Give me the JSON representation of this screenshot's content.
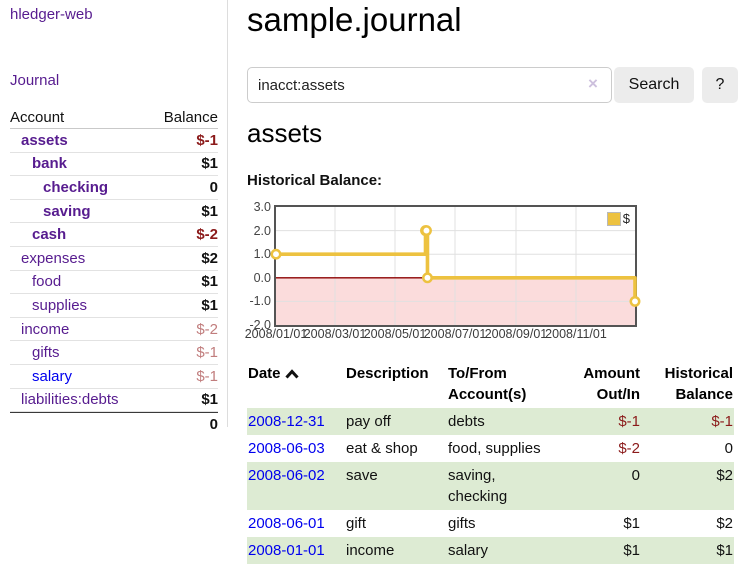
{
  "app": {
    "brand": "hledger-web",
    "nav": {
      "journal": "Journal"
    }
  },
  "sidebar": {
    "header": {
      "account": "Account",
      "balance": "Balance"
    },
    "accounts": [
      {
        "name": "assets",
        "indent": 1,
        "balance": "$-1",
        "bold": true,
        "neg": "strong"
      },
      {
        "name": "bank",
        "indent": 2,
        "balance": "$1",
        "bold": true
      },
      {
        "name": "checking",
        "indent": 3,
        "balance": "0",
        "bold": true
      },
      {
        "name": "saving",
        "indent": 3,
        "balance": "$1",
        "bold": true
      },
      {
        "name": "cash",
        "indent": 2,
        "balance": "$-2",
        "bold": true,
        "neg": "strong"
      },
      {
        "name": "expenses",
        "indent": 1,
        "balance": "$2"
      },
      {
        "name": "food",
        "indent": 2,
        "balance": "$1"
      },
      {
        "name": "supplies",
        "indent": 2,
        "balance": "$1"
      },
      {
        "name": "income",
        "indent": 1,
        "balance": "$-2",
        "neg": "soft"
      },
      {
        "name": "gifts",
        "indent": 2,
        "balance": "$-1",
        "neg": "soft"
      },
      {
        "name": "salary",
        "indent": 2,
        "balance": "$-1",
        "neg": "soft",
        "link": "blue"
      },
      {
        "name": "liabilities:debts",
        "indent": 1,
        "balance": "$1"
      }
    ],
    "total": "0"
  },
  "header": {
    "title": "sample.journal"
  },
  "search": {
    "value": "inacct:assets",
    "clear_icon": "×",
    "button_label": "Search",
    "help_label": "?"
  },
  "account_page": {
    "title": "assets",
    "chart_label": "Historical Balance:"
  },
  "chart_data": {
    "type": "line",
    "title": "Historical Balance",
    "style": "step",
    "series": [
      {
        "name": "$",
        "color": "#edc240",
        "points": [
          [
            "2008-01-01",
            1
          ],
          [
            "2008-06-01",
            2
          ],
          [
            "2008-06-02",
            2
          ],
          [
            "2008-06-03",
            0
          ],
          [
            "2008-12-31",
            -1
          ]
        ]
      }
    ],
    "x_ticks": [
      "2008/01/01",
      "2008/03/01",
      "2008/05/01",
      "2008/07/01",
      "2008/09/01",
      "2008/11/01"
    ],
    "y_ticks": [
      "3.0",
      "2.0",
      "1.0",
      "0.0",
      "-1.0",
      "-2.0"
    ],
    "y_tick_values": [
      3,
      2,
      1,
      0,
      -1,
      -2
    ],
    "ylim": [
      -2,
      3
    ],
    "xlim": [
      "2008-01-01",
      "2008-12-31"
    ],
    "grid": true,
    "legend": {
      "label": "$",
      "position": "top-right"
    },
    "negative_region_color": "#fbdcdc",
    "zero_line_color": "#8b0000"
  },
  "register": {
    "columns": [
      {
        "l1": "Date"
      },
      {
        "l1": "Description"
      },
      {
        "l1": "To/From",
        "l2": "Account(s)"
      },
      {
        "l1": "Amount",
        "l2": "Out/In"
      },
      {
        "l1": "Historical",
        "l2": "Balance"
      }
    ],
    "rows": [
      {
        "date": "2008-12-31",
        "description": "pay off",
        "accounts": "debts",
        "amount": "$-1",
        "balance": "$-1"
      },
      {
        "date": "2008-06-03",
        "description": "eat & shop",
        "accounts": "food, supplies",
        "amount": "$-2",
        "balance": "0"
      },
      {
        "date": "2008-06-02",
        "description": "save",
        "accounts": "saving, checking",
        "amount": "0",
        "balance": "$2"
      },
      {
        "date": "2008-06-01",
        "description": "gift",
        "accounts": "gifts",
        "amount": "$1",
        "balance": "$2"
      },
      {
        "date": "2008-01-01",
        "description": "income",
        "accounts": "salary",
        "amount": "$1",
        "balance": "$1"
      }
    ]
  },
  "colors": {
    "link_purple": "#571c8f",
    "link_blue": "#0000ee",
    "negative_strong": "#8b1a1a",
    "negative_soft": "#c17d7d",
    "row_green": "#ddebd3",
    "chart_line": "#edc240",
    "chart_negative_fill": "#fbdcdc",
    "chart_zero_line": "#8b0000",
    "button_gray": "#ececec"
  }
}
